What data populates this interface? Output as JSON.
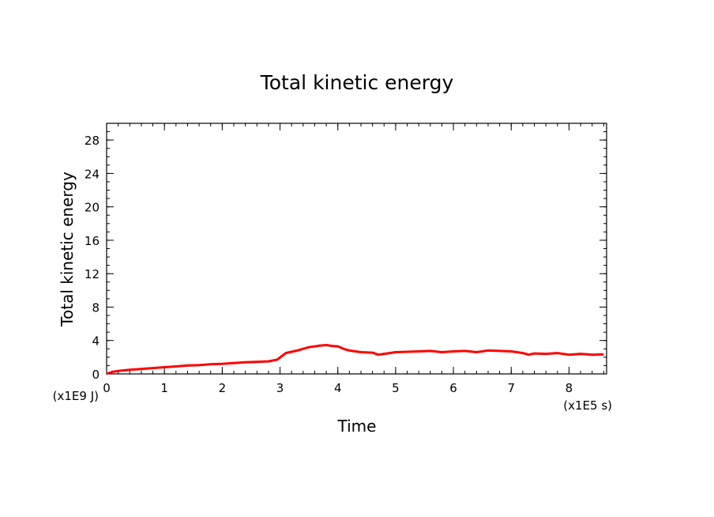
{
  "chart_data": {
    "type": "line",
    "title": "Total kinetic energy",
    "xlabel": "Time",
    "ylabel": "Total kinetic energy",
    "x_unit": "(x1E5 s)",
    "y_unit": "(x1E9 J)",
    "xlim": [
      0,
      8.65
    ],
    "ylim": [
      0,
      30
    ],
    "xticks": [
      0,
      1,
      2,
      3,
      4,
      5,
      6,
      7,
      8
    ],
    "yticks": [
      0,
      4,
      8,
      12,
      16,
      20,
      24,
      28
    ],
    "grid": false,
    "line_color": "#ff0000",
    "series": [
      {
        "x": [
          0,
          0.1,
          0.2,
          0.4,
          0.6,
          0.8,
          1.0,
          1.2,
          1.4,
          1.6,
          1.8,
          2.0,
          2.2,
          2.4,
          2.6,
          2.8,
          2.95,
          3.1,
          3.3,
          3.5,
          3.7,
          3.8,
          3.9,
          4.0,
          4.1,
          4.2,
          4.4,
          4.6,
          4.7,
          4.8,
          4.9,
          5.0,
          5.2,
          5.4,
          5.6,
          5.8,
          6.0,
          6.2,
          6.4,
          6.6,
          6.8,
          7.0,
          7.2,
          7.3,
          7.4,
          7.6,
          7.8,
          8.0,
          8.2,
          8.4,
          8.6
        ],
        "y": [
          0.0,
          0.25,
          0.35,
          0.5,
          0.6,
          0.7,
          0.8,
          0.9,
          1.0,
          1.05,
          1.15,
          1.2,
          1.3,
          1.4,
          1.45,
          1.5,
          1.7,
          2.5,
          2.8,
          3.2,
          3.4,
          3.45,
          3.35,
          3.3,
          3.0,
          2.8,
          2.6,
          2.55,
          2.3,
          2.4,
          2.5,
          2.6,
          2.65,
          2.7,
          2.75,
          2.6,
          2.7,
          2.75,
          2.6,
          2.8,
          2.75,
          2.7,
          2.5,
          2.3,
          2.45,
          2.4,
          2.5,
          2.3,
          2.4,
          2.3,
          2.35
        ]
      }
    ]
  }
}
